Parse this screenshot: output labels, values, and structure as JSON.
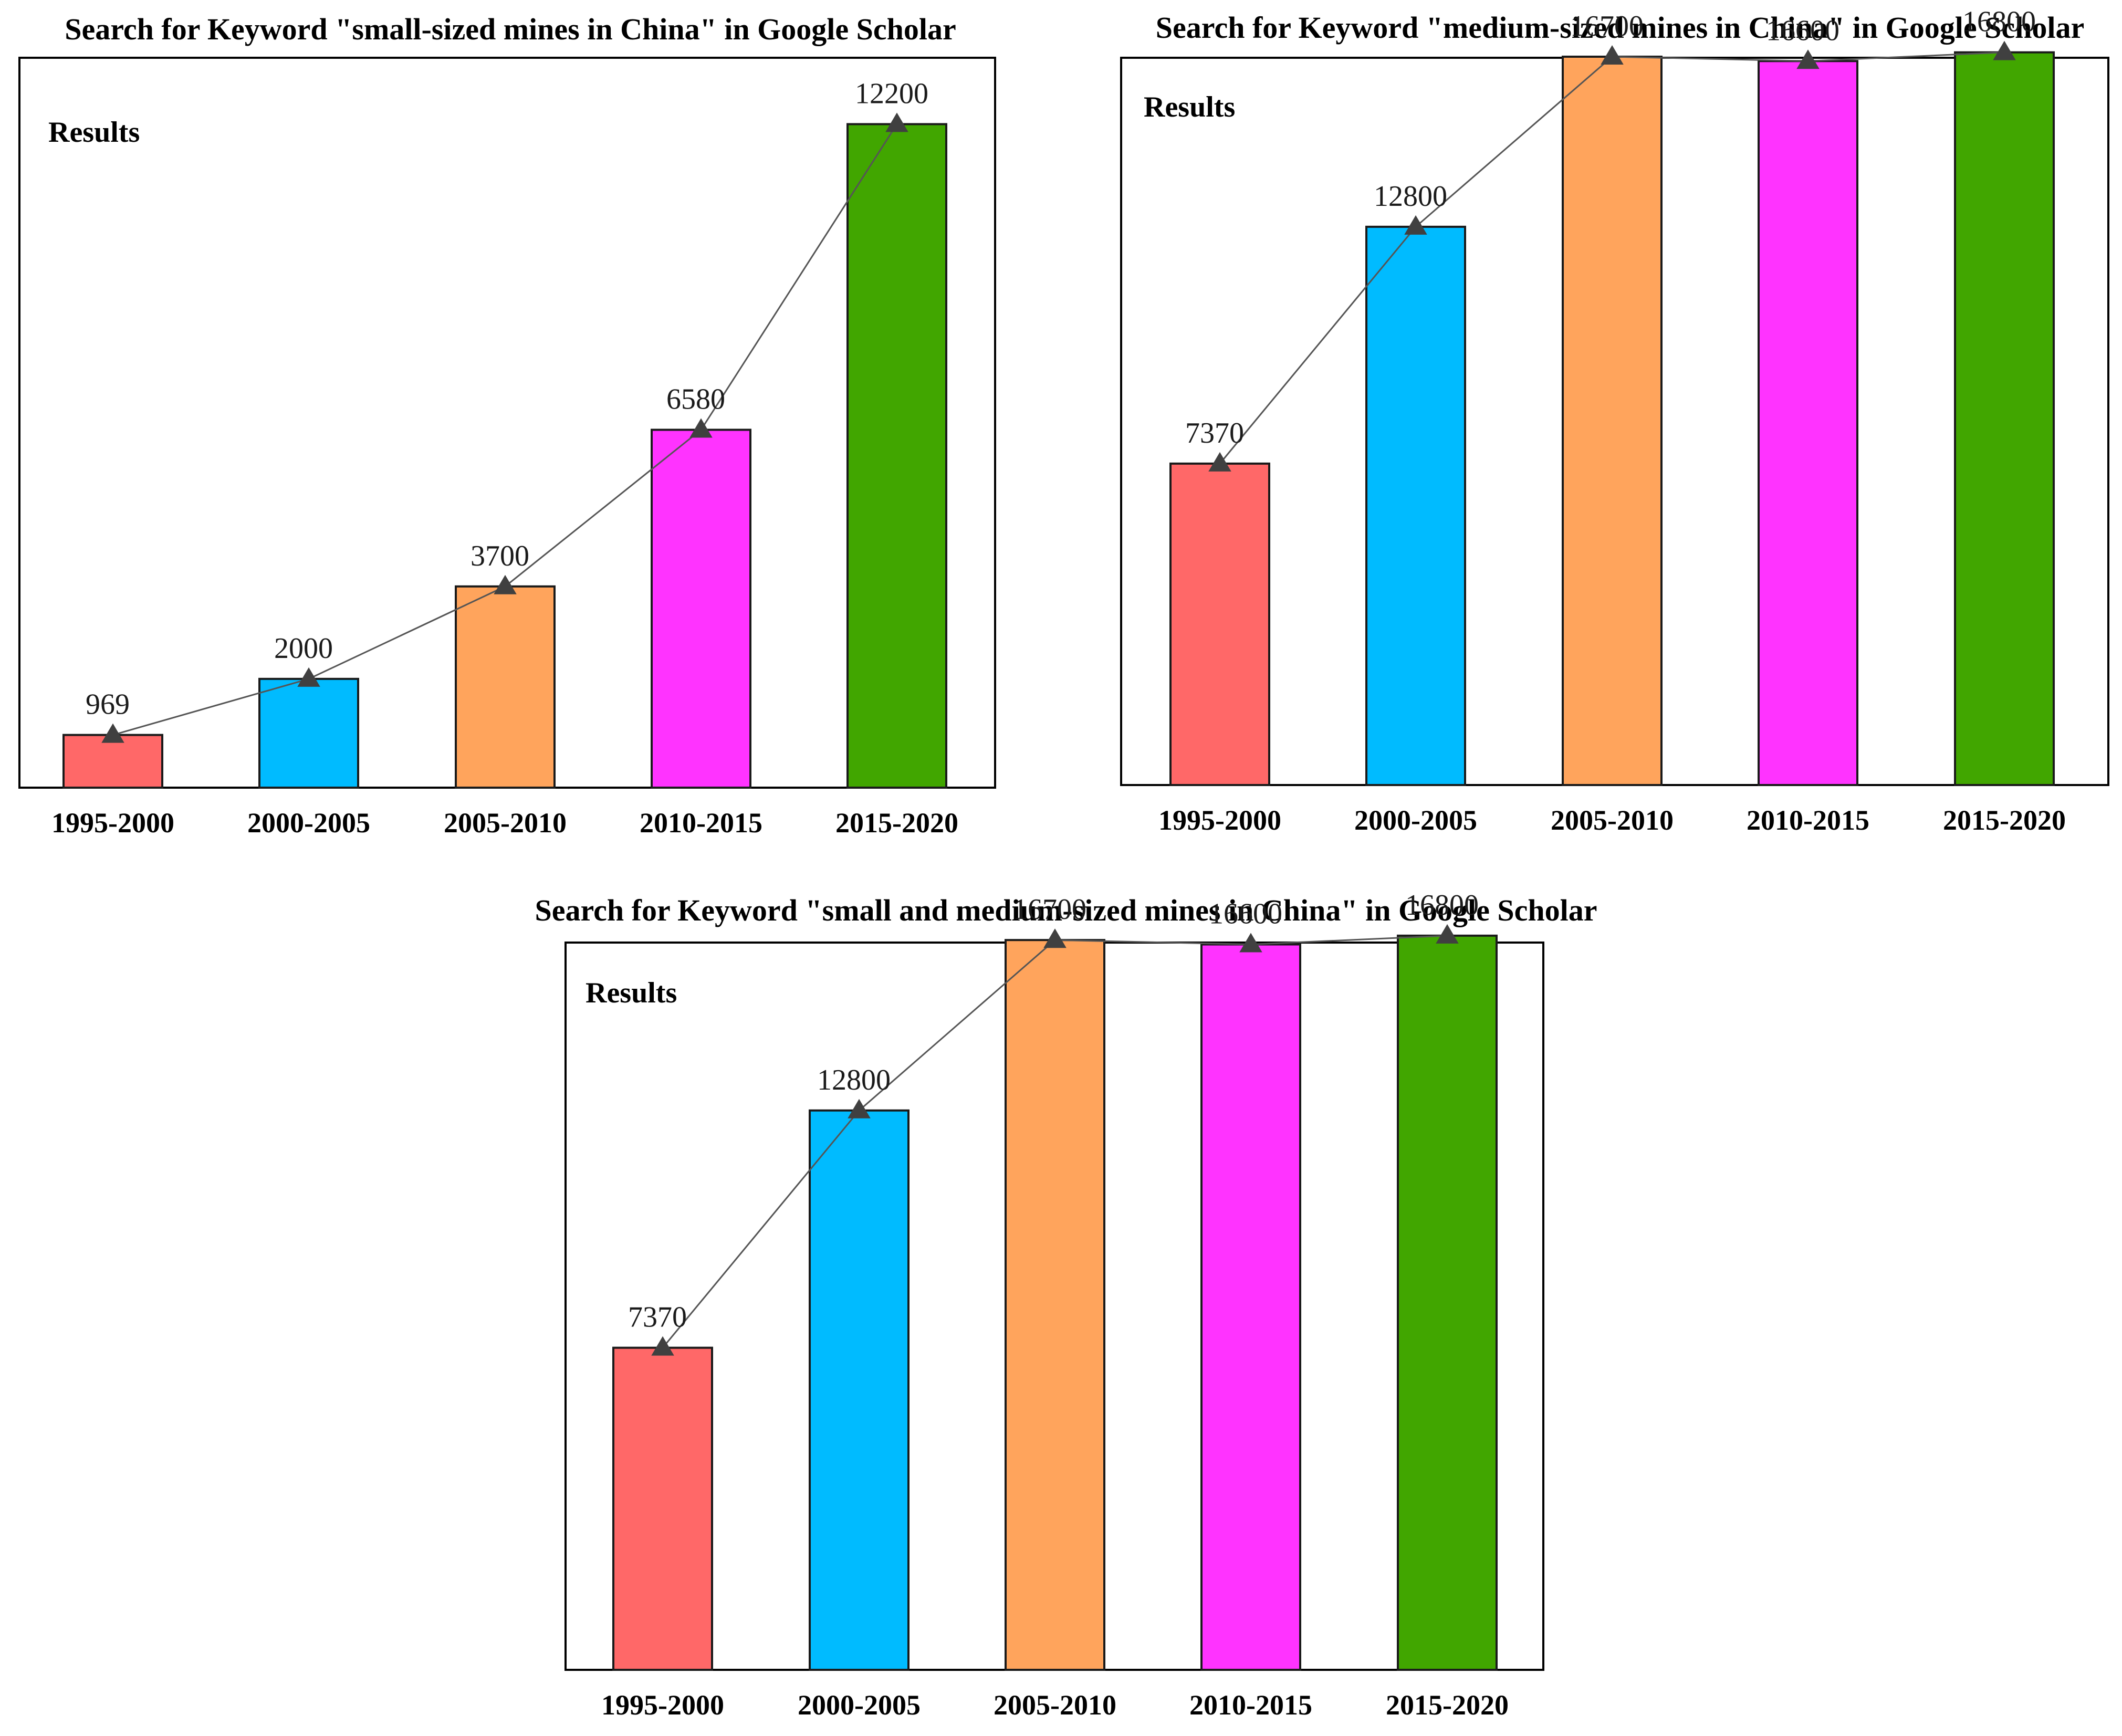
{
  "chart_data": [
    {
      "type": "bar",
      "title": "Search for Keyword \"small-sized mines in China\" in Google Scholar",
      "ylabel": "Results",
      "xlabel": "",
      "categories": [
        "1995-2000",
        "2000-2005",
        "2005-2010",
        "2010-2015",
        "2015-2020"
      ],
      "values": [
        969,
        2000,
        3700,
        6580,
        12200
      ],
      "data_labels": [
        "969",
        "2000",
        "3700",
        "6580",
        "12200"
      ],
      "ylim": [
        0,
        14000
      ],
      "colors": [
        "#ff6868",
        "#00bbff",
        "#ffa45c",
        "#ff33ff",
        "#41a600"
      ],
      "overlay": "line with triangle markers",
      "grid": false
    },
    {
      "type": "bar",
      "title": "Search for Keyword \"medium-sized mines in China\" in Google Scholar",
      "ylabel": "Results",
      "xlabel": "",
      "categories": [
        "1995-2000",
        "2000-2005",
        "2005-2010",
        "2010-2015",
        "2015-2020"
      ],
      "values": [
        7370,
        12800,
        16700,
        16600,
        16800
      ],
      "data_labels": [
        "7370",
        "12800",
        "16700",
        "16600",
        "16800"
      ],
      "ylim": [
        0,
        18000
      ],
      "colors": [
        "#ff6868",
        "#00bbff",
        "#ffa45c",
        "#ff33ff",
        "#41a600"
      ],
      "overlay": "line with triangle markers",
      "grid": false
    },
    {
      "type": "bar",
      "title": "Search for Keyword \"small and medium-sized mines in China\" in Google Scholar",
      "ylabel": "Results",
      "xlabel": "",
      "categories": [
        "1995-2000",
        "2000-2005",
        "2005-2010",
        "2010-2015",
        "2015-2020"
      ],
      "values": [
        7370,
        12800,
        16700,
        16600,
        16800
      ],
      "data_labels": [
        "7370",
        "12800",
        "16700",
        "16600",
        "16800"
      ],
      "ylim": [
        0,
        18000
      ],
      "colors": [
        "#ff6868",
        "#00bbff",
        "#ffa45c",
        "#ff33ff",
        "#41a600"
      ],
      "overlay": "line with triangle markers",
      "grid": false
    }
  ]
}
